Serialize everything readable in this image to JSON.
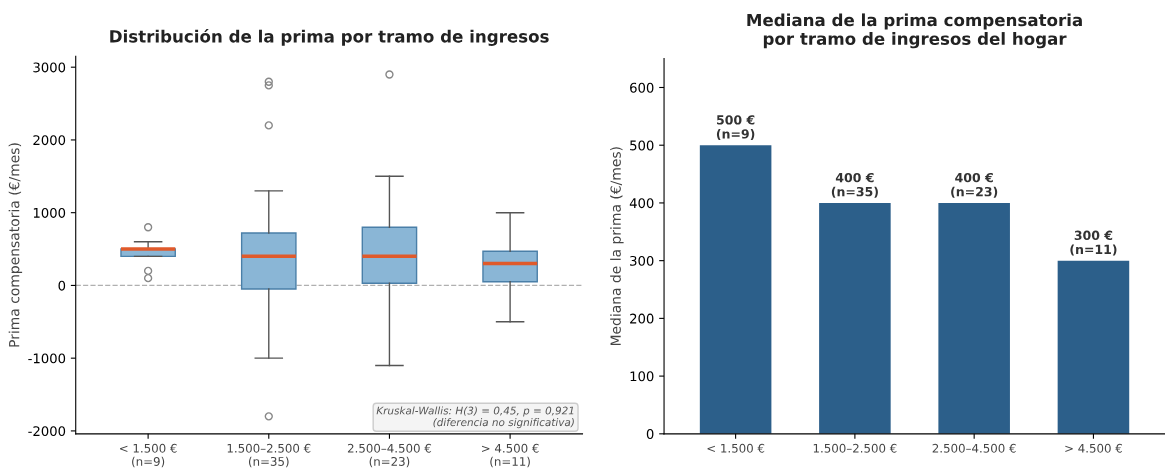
{
  "chart_data": [
    {
      "type": "box",
      "title": "Distribución de la prima por tramo de ingresos",
      "ylabel": "Prima compensatoria (€/mes)",
      "categories": [
        "< 1.500 €\n(n=9)",
        "1.500–2.500 €\n(n=35)",
        "2.500–4.500 €\n(n=23)",
        "> 4.500 €\n(n=11)"
      ],
      "boxes": [
        {
          "low": 400,
          "q1": 400,
          "median": 500,
          "q3": 500,
          "high": 600,
          "outliers": [
            800,
            200,
            100
          ]
        },
        {
          "low": -1000,
          "q1": -50,
          "median": 400,
          "q3": 720,
          "high": 1300,
          "outliers": [
            2800,
            2750,
            2200,
            -1800
          ]
        },
        {
          "low": -1100,
          "q1": 30,
          "median": 400,
          "q3": 800,
          "high": 1500,
          "outliers": [
            2900
          ]
        },
        {
          "low": -500,
          "q1": 50,
          "median": 300,
          "q3": 470,
          "high": 1000
        }
      ],
      "color": "#8ab6d6",
      "ylim": [
        -2040,
        3150
      ],
      "yticks": [
        -2000,
        -1000,
        0,
        1000,
        2000,
        3000
      ],
      "ref_lines": [
        {
          "axis": "y",
          "value": 0,
          "label": null,
          "color": "#b0b0b0",
          "line_style": "dashed"
        }
      ],
      "annotations": [
        "Kruskal-Wallis: H(3) = 0,45, p = 0,921\n(diferencia no significativa)"
      ],
      "grid": false
    },
    {
      "type": "bar",
      "title": "Mediana de la prima compensatoria\npor tramo de ingresos del hogar",
      "ylabel": "Mediana de la prima (€/mes)",
      "categories": [
        "< 1.500 €",
        "1.500–2.500 €",
        "2.500–4.500 €",
        "> 4.500 €"
      ],
      "values": [
        500,
        400,
        400,
        300
      ],
      "color": "#2c5f8a",
      "value_labels": [
        "500 €\n(n=9)",
        "400 €\n(n=35)",
        "400 €\n(n=23)",
        "300 €\n(n=11)"
      ],
      "ylim": [
        0,
        650
      ],
      "yticks": [
        0,
        100,
        200,
        300,
        400,
        500,
        600
      ],
      "grid": false
    }
  ]
}
